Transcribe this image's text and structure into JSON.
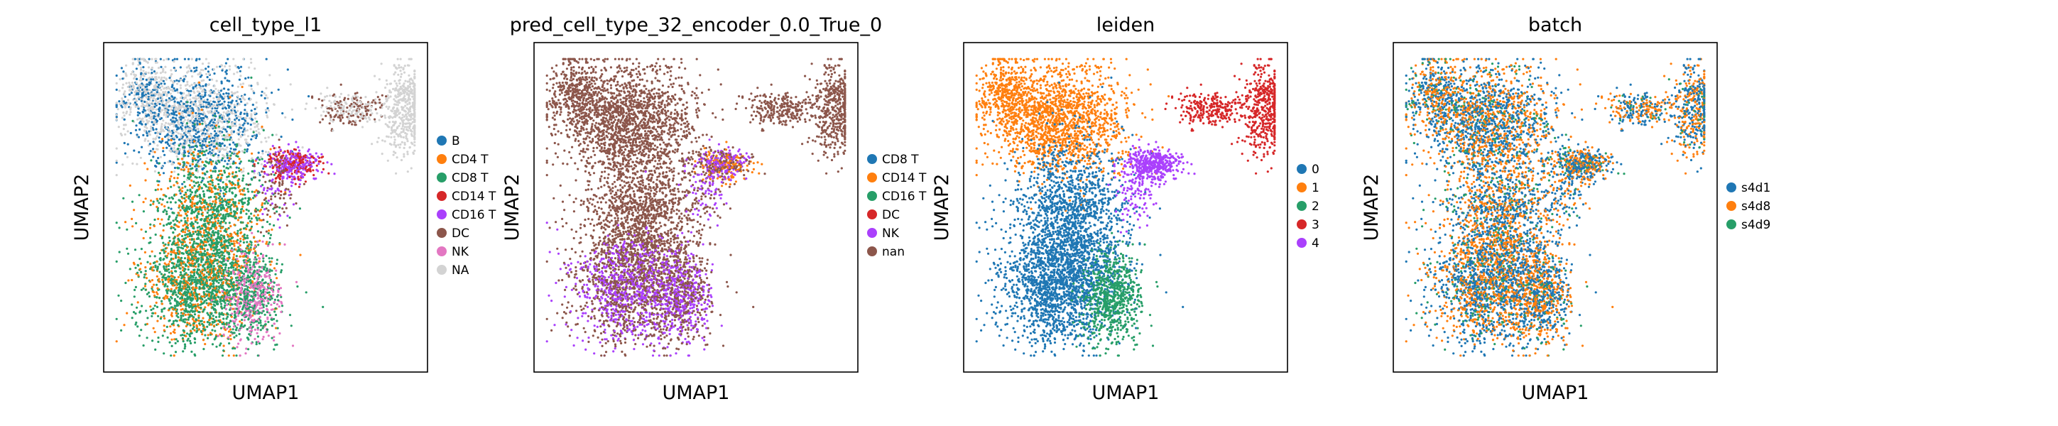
{
  "chart_data": [
    {
      "type": "scatter",
      "title": "cell_type_l1",
      "xlabel": "UMAP1",
      "ylabel": "UMAP2",
      "grid": false,
      "legend_placement": "right",
      "legend": [
        {
          "label": "B",
          "color": "#1f77b4"
        },
        {
          "label": "CD4 T",
          "color": "#ff7f0e"
        },
        {
          "label": "CD8 T",
          "color": "#279e68"
        },
        {
          "label": "CD14 T",
          "color": "#d62728"
        },
        {
          "label": "CD16 T",
          "color": "#aa40fc"
        },
        {
          "label": "DC",
          "color": "#8c564b"
        },
        {
          "label": "NK",
          "color": "#e377c2"
        },
        {
          "label": "NA",
          "color": "#d3d3d3"
        }
      ]
    },
    {
      "type": "scatter",
      "title": "pred_cell_type_32_encoder_0.0_True_0",
      "xlabel": "UMAP1",
      "ylabel": "UMAP2",
      "grid": false,
      "legend_placement": "right",
      "legend": [
        {
          "label": "CD8 T",
          "color": "#1f77b4"
        },
        {
          "label": "CD14 T",
          "color": "#ff7f0e"
        },
        {
          "label": "CD16 T",
          "color": "#279e68"
        },
        {
          "label": "DC",
          "color": "#d62728"
        },
        {
          "label": "NK",
          "color": "#aa40fc"
        },
        {
          "label": "nan",
          "color": "#8c564b"
        }
      ]
    },
    {
      "type": "scatter",
      "title": "leiden",
      "xlabel": "UMAP1",
      "ylabel": "UMAP2",
      "grid": false,
      "legend_placement": "right",
      "legend": [
        {
          "label": "0",
          "color": "#1f77b4"
        },
        {
          "label": "1",
          "color": "#ff7f0e"
        },
        {
          "label": "2",
          "color": "#279e68"
        },
        {
          "label": "3",
          "color": "#d62728"
        },
        {
          "label": "4",
          "color": "#aa40fc"
        }
      ]
    },
    {
      "type": "scatter",
      "title": "batch",
      "xlabel": "UMAP1",
      "ylabel": "UMAP2",
      "grid": false,
      "legend_placement": "right",
      "legend": [
        {
          "label": "s4d1",
          "color": "#1f77b4"
        },
        {
          "label": "s4d8",
          "color": "#ff7f0e"
        },
        {
          "label": "s4d9",
          "color": "#279e68"
        }
      ]
    }
  ]
}
